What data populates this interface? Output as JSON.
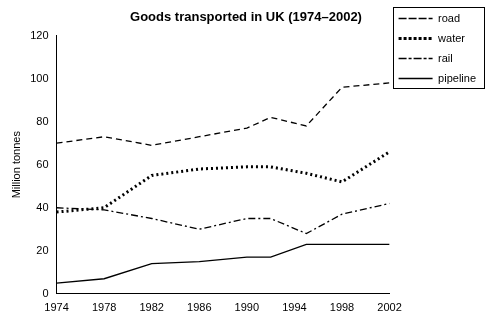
{
  "chart_data": {
    "type": "line",
    "title": "Goods transported in UK (1974–2002)",
    "y_label": "Million tonnes",
    "x": [
      1974,
      1978,
      1982,
      1986,
      1990,
      1992,
      1995,
      1998,
      2002
    ],
    "series": [
      {
        "name": "road",
        "color": "#000000",
        "line_style": "dashed",
        "marker": "none",
        "values": [
          70,
          73,
          69,
          73,
          77,
          82,
          78,
          96,
          98
        ]
      },
      {
        "name": "water",
        "color": "#000000",
        "line_style": "dotted",
        "marker": "none",
        "values": [
          38,
          40,
          55,
          58,
          59,
          59,
          56,
          52,
          66
        ]
      },
      {
        "name": "rail",
        "color": "#000000",
        "line_style": "dashdot",
        "marker": "none",
        "values": [
          40,
          39,
          35,
          30,
          35,
          35,
          28,
          37,
          42
        ]
      },
      {
        "name": "pipeline",
        "color": "#000000",
        "line_style": "solid",
        "marker": "none",
        "values": [
          5,
          7,
          14,
          15,
          17,
          17,
          23,
          23,
          23
        ]
      }
    ],
    "xlim": [
      1974,
      2002
    ],
    "xticks": [
      1974,
      1978,
      1982,
      1986,
      1990,
      1994,
      1998,
      2002
    ],
    "ylim": [
      0,
      120
    ],
    "yticks": [
      0,
      20,
      40,
      60,
      80,
      100,
      120
    ],
    "grid": false,
    "legend": "top-right"
  }
}
